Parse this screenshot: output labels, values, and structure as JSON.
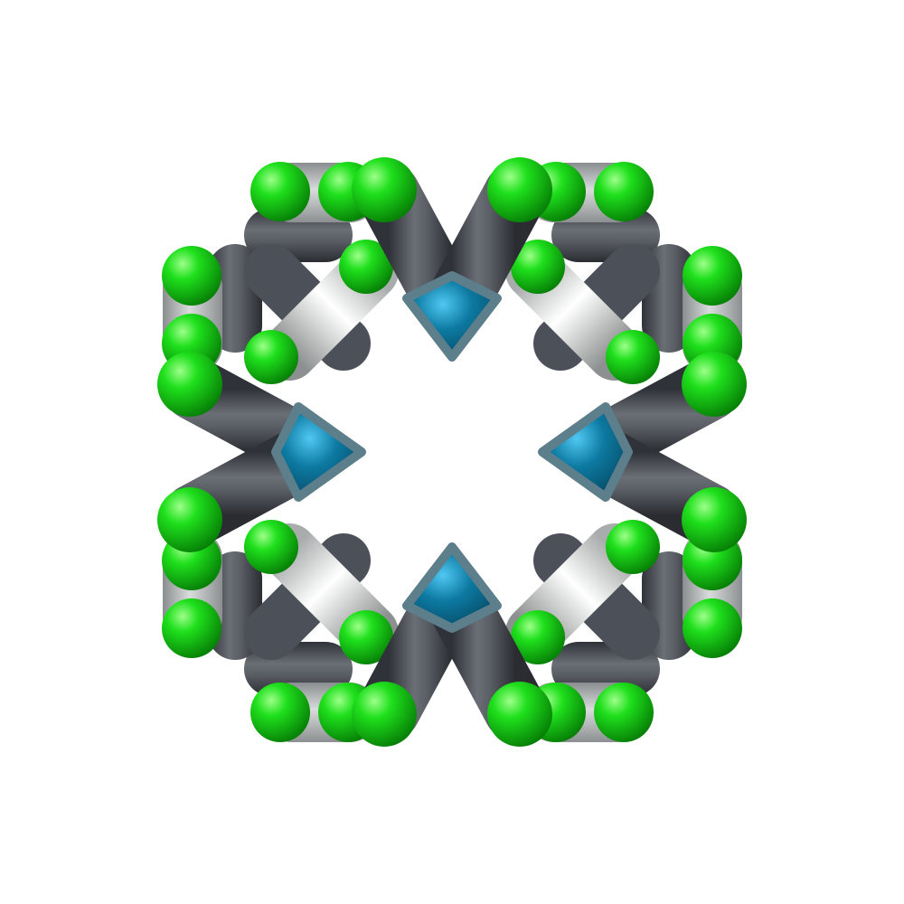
{
  "scene": {
    "name": "molecular-cage-stick-model",
    "background": "#ffffff"
  },
  "colors": {
    "green": "#0bd10b",
    "green_dark": "#079a07",
    "green_light": "#7dff6a",
    "gray_dark": "#4c5058",
    "gray_mid": "#7b7f86",
    "gray_light": "#cfd2d2",
    "gray_pale": "#eceeed",
    "teal": "#0b6a8e",
    "teal_light": "#39b6e6",
    "white_bond": "#e2e4e2"
  }
}
